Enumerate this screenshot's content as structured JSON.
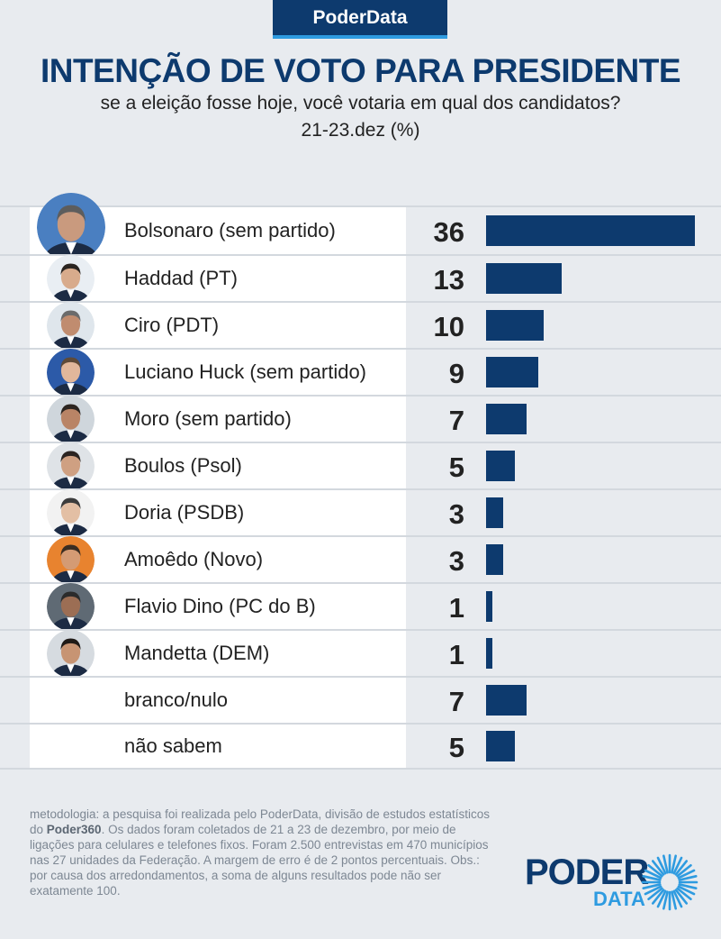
{
  "brand": "PoderData",
  "title": "INTENÇÃO DE VOTO PARA PRESIDENTE",
  "subtitle": "se a eleição fosse hoje, você votaria em qual dos candidatos?",
  "date": "21-23.dez (%)",
  "colors": {
    "bar": "#0d3a6e",
    "accent": "#2e9be0",
    "background": "#e8ebef"
  },
  "chart_data": {
    "type": "bar",
    "orientation": "horizontal",
    "categories": [
      "Bolsonaro (sem partido)",
      "Haddad (PT)",
      "Ciro (PDT)",
      "Luciano Huck (sem partido)",
      "Moro (sem partido)",
      "Boulos (Psol)",
      "Doria (PSDB)",
      "Amoêdo (Novo)",
      "Flavio Dino (PC do B)",
      "Mandetta (DEM)",
      "branco/nulo",
      "não sabem"
    ],
    "values": [
      36,
      13,
      10,
      9,
      7,
      5,
      3,
      3,
      1,
      1,
      7,
      5
    ],
    "value_labels": [
      "36",
      "13",
      "10",
      "9",
      "7",
      "5",
      "3",
      "3",
      "1",
      "1",
      "7",
      "5"
    ],
    "has_photo": [
      true,
      true,
      true,
      true,
      true,
      true,
      true,
      true,
      true,
      true,
      false,
      false
    ],
    "xlim": [
      0,
      36
    ]
  },
  "note": {
    "part1": "metodologia: a pesquisa foi realizada pelo PoderData, divisão de estudos estatísticos do ",
    "bold": "Poder360",
    "part2": ". Os dados foram coletados de 21 a 23 de dezembro, por meio de ligações para celulares e telefones fixos. Foram 2.500 entrevistas em 470 municípios nas 27 unidades da Federação. A margem de erro é de 2 pontos percentuais. Obs.: por causa dos arredondamentos, a soma de alguns resultados pode não ser exatamente 100."
  },
  "logo": {
    "line1": "PODER",
    "line2": "DATA"
  }
}
